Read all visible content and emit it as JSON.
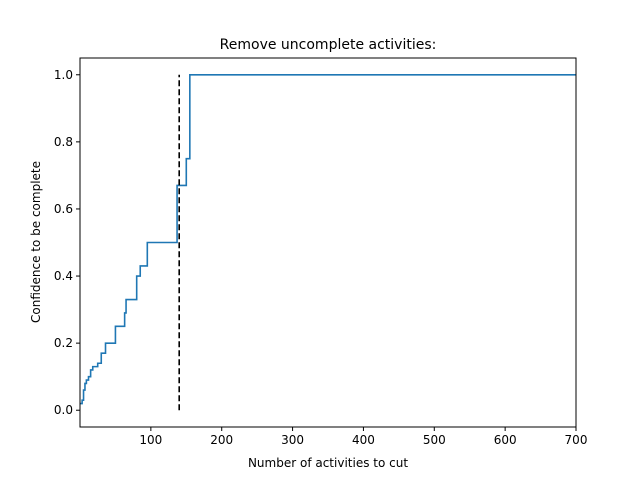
{
  "chart_data": {
    "type": "line",
    "title": "Remove uncomplete activities:",
    "xlabel": "Number of activities to cut",
    "ylabel": "Confidence to be complete",
    "xlim": [
      0,
      700
    ],
    "ylim": [
      -0.05,
      1.05
    ],
    "x_ticks": [
      100,
      200,
      300,
      400,
      500,
      600,
      700
    ],
    "y_ticks": [
      0.0,
      0.2,
      0.4,
      0.6,
      0.8,
      1.0
    ],
    "x_tick_labels": [
      "100",
      "200",
      "300",
      "400",
      "500",
      "600",
      "700"
    ],
    "y_tick_labels": [
      "0.0",
      "0.2",
      "0.4",
      "0.6",
      "0.8",
      "1.0"
    ],
    "grid": false,
    "colors": {
      "series": "#1f77b4",
      "cutoff": "#000000"
    },
    "series": [
      {
        "x": [
          0,
          3,
          3,
          5,
          5,
          7,
          7,
          9,
          9,
          12,
          12,
          15,
          15,
          18,
          18,
          22,
          22,
          25,
          25,
          30,
          30,
          33,
          33,
          36,
          36,
          40,
          40,
          50,
          50,
          55,
          55,
          63,
          63,
          65,
          65,
          80,
          80,
          85,
          85,
          95,
          95,
          137,
          137,
          140,
          140,
          150,
          150,
          153,
          153,
          155,
          155,
          700
        ],
        "y": [
          0.02,
          0.02,
          0.03,
          0.03,
          0.06,
          0.06,
          0.08,
          0.08,
          0.09,
          0.09,
          0.1,
          0.1,
          0.12,
          0.12,
          0.13,
          0.13,
          0.13,
          0.13,
          0.14,
          0.14,
          0.17,
          0.17,
          0.17,
          0.17,
          0.2,
          0.2,
          0.2,
          0.2,
          0.25,
          0.25,
          0.25,
          0.25,
          0.29,
          0.29,
          0.33,
          0.33,
          0.4,
          0.4,
          0.43,
          0.43,
          0.5,
          0.5,
          0.67,
          0.67,
          0.67,
          0.67,
          0.75,
          0.75,
          0.75,
          0.75,
          1.0,
          1.0
        ]
      }
    ],
    "cutoff_line": {
      "x": 140,
      "y_from": 0.0,
      "y_to": 1.0,
      "style": "dashed"
    }
  }
}
